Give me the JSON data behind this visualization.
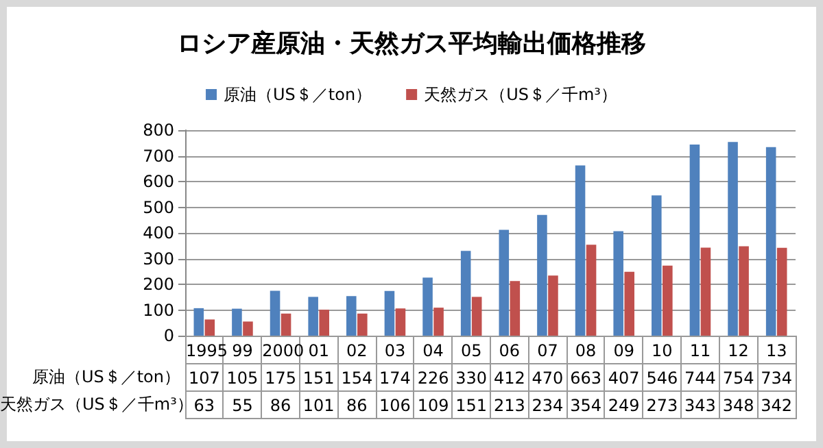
{
  "chart_data": {
    "type": "bar",
    "title": "ロシア産原油・天然ガス平均輸出価格推移",
    "categories": [
      "1995",
      "99",
      "2000",
      "01",
      "02",
      "03",
      "04",
      "05",
      "06",
      "07",
      "08",
      "09",
      "10",
      "11",
      "12",
      "13"
    ],
    "series": [
      {
        "name": "原油（US＄／ton）",
        "color": "#4f81bd",
        "values": [
          107,
          105,
          175,
          151,
          154,
          174,
          226,
          330,
          412,
          470,
          663,
          407,
          546,
          744,
          754,
          734
        ]
      },
      {
        "name": "天然ガス（US＄／千m³）",
        "color": "#c0504d",
        "values": [
          63,
          55,
          86,
          101,
          86,
          106,
          109,
          151,
          213,
          234,
          354,
          249,
          273,
          343,
          348,
          342
        ]
      }
    ],
    "ylim": [
      0,
      800
    ],
    "yticks": [
      0,
      100,
      200,
      300,
      400,
      500,
      600,
      700,
      800
    ],
    "grid": "y",
    "legend": "top",
    "data_labels": true
  }
}
